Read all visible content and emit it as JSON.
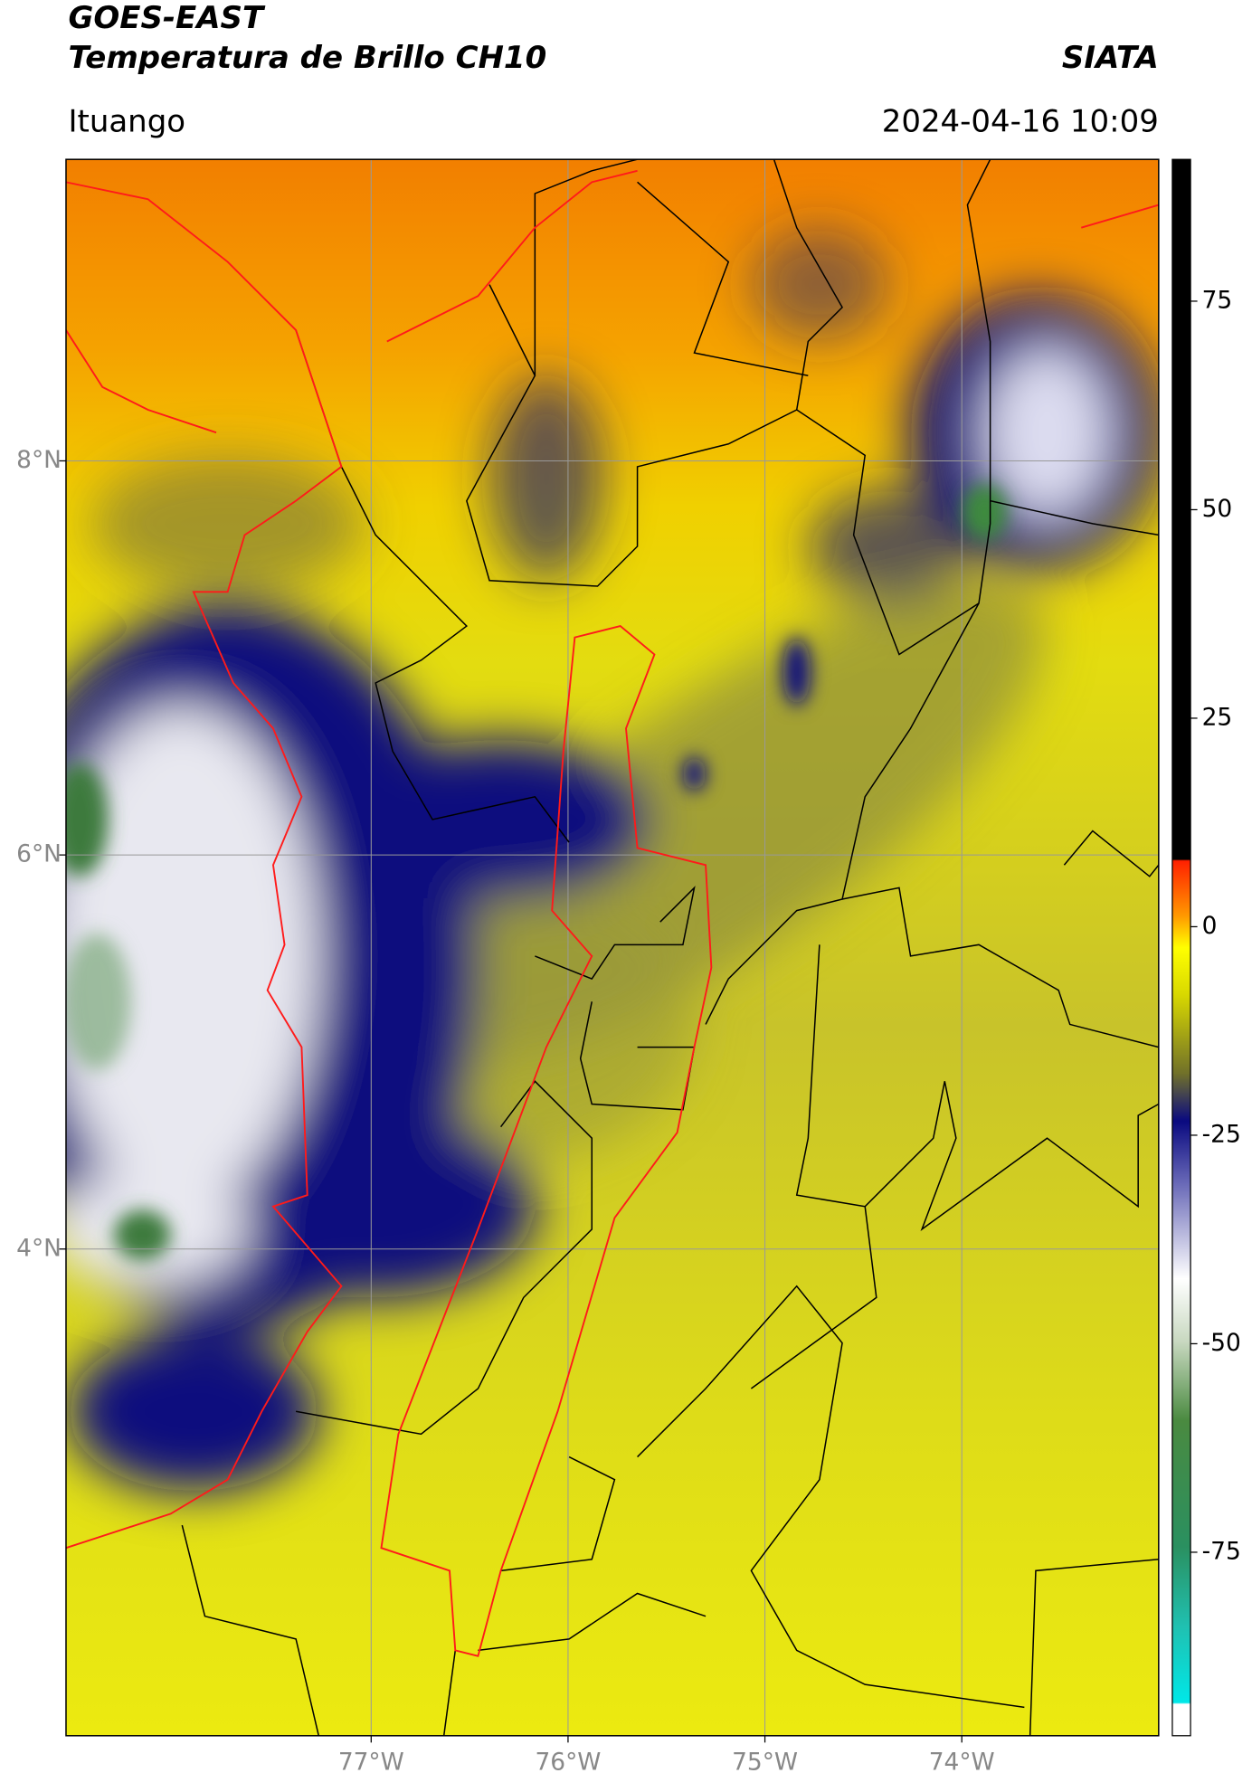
{
  "header": {
    "title": "GOES-EAST",
    "subtitle": "Temperatura de Brillo CH10",
    "source": "SIATA",
    "location": "Ituango",
    "timestamp": "2024-04-16 10:09"
  },
  "map": {
    "lat_range": [
      1.53,
      9.53
    ],
    "lon_range": [
      -78.55,
      -73.0
    ],
    "lat_ticks": [
      {
        "value": 8,
        "label": "8°N"
      },
      {
        "value": 6,
        "label": "6°N"
      },
      {
        "value": 4,
        "label": "4°N"
      }
    ],
    "lon_ticks": [
      {
        "value": -77,
        "label": "77°W"
      },
      {
        "value": -76,
        "label": "76°W"
      },
      {
        "value": -75,
        "label": "75°W"
      },
      {
        "value": -74,
        "label": "74°W"
      }
    ]
  },
  "colorbar": {
    "range": [
      -97,
      92
    ],
    "ticks": [
      75,
      50,
      25,
      0,
      -25,
      -50,
      -75
    ]
  }
}
